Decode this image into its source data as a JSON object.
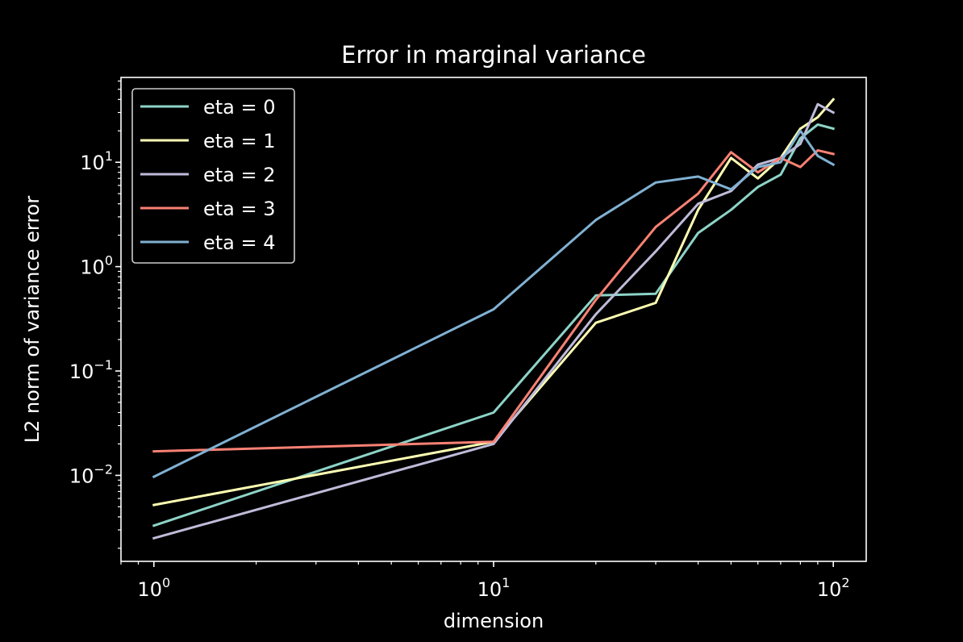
{
  "chart_data": {
    "type": "line",
    "title": "Error in marginal variance",
    "xlabel": "dimension",
    "ylabel": "L2 norm of variance error",
    "xscale": "log",
    "yscale": "log",
    "xlim": [
      0.8,
      125
    ],
    "ylim": [
      0.0015,
      65
    ],
    "xticks": [
      {
        "base": "10",
        "exp": "0",
        "value": 1
      },
      {
        "base": "10",
        "exp": "1",
        "value": 10
      },
      {
        "base": "10",
        "exp": "2",
        "value": 100
      }
    ],
    "yticks": [
      {
        "base": "10",
        "exp": "−2",
        "value": 0.01
      },
      {
        "base": "10",
        "exp": "−1",
        "value": 0.1
      },
      {
        "base": "10",
        "exp": "0",
        "value": 1
      },
      {
        "base": "10",
        "exp": "1",
        "value": 10
      }
    ],
    "grid": false,
    "legend_position": "upper-left",
    "x": [
      1,
      10,
      20,
      30,
      40,
      50,
      60,
      70,
      80,
      90,
      100
    ],
    "series": [
      {
        "name": "eta = 0",
        "color": "#8dd3c7",
        "values": [
          0.0033,
          0.04,
          0.53,
          0.55,
          2.1,
          3.5,
          5.8,
          7.6,
          17,
          23,
          21
        ]
      },
      {
        "name": "eta = 1",
        "color": "#feffb3",
        "values": [
          0.0052,
          0.021,
          0.29,
          0.45,
          3.5,
          11,
          7,
          11,
          21,
          27,
          40
        ]
      },
      {
        "name": "eta = 2",
        "color": "#bfbbd9",
        "values": [
          0.0025,
          0.02,
          0.35,
          1.4,
          4,
          5.3,
          9.5,
          11,
          15,
          36,
          30
        ]
      },
      {
        "name": "eta = 3",
        "color": "#fa8174",
        "values": [
          0.017,
          0.021,
          0.48,
          2.4,
          5,
          12.5,
          8,
          11,
          9,
          13,
          12
        ]
      },
      {
        "name": "eta = 4",
        "color": "#81b1d2",
        "values": [
          0.0097,
          0.39,
          2.8,
          6.4,
          7.3,
          5.5,
          9,
          10,
          20,
          11.5,
          9.5
        ]
      }
    ]
  }
}
